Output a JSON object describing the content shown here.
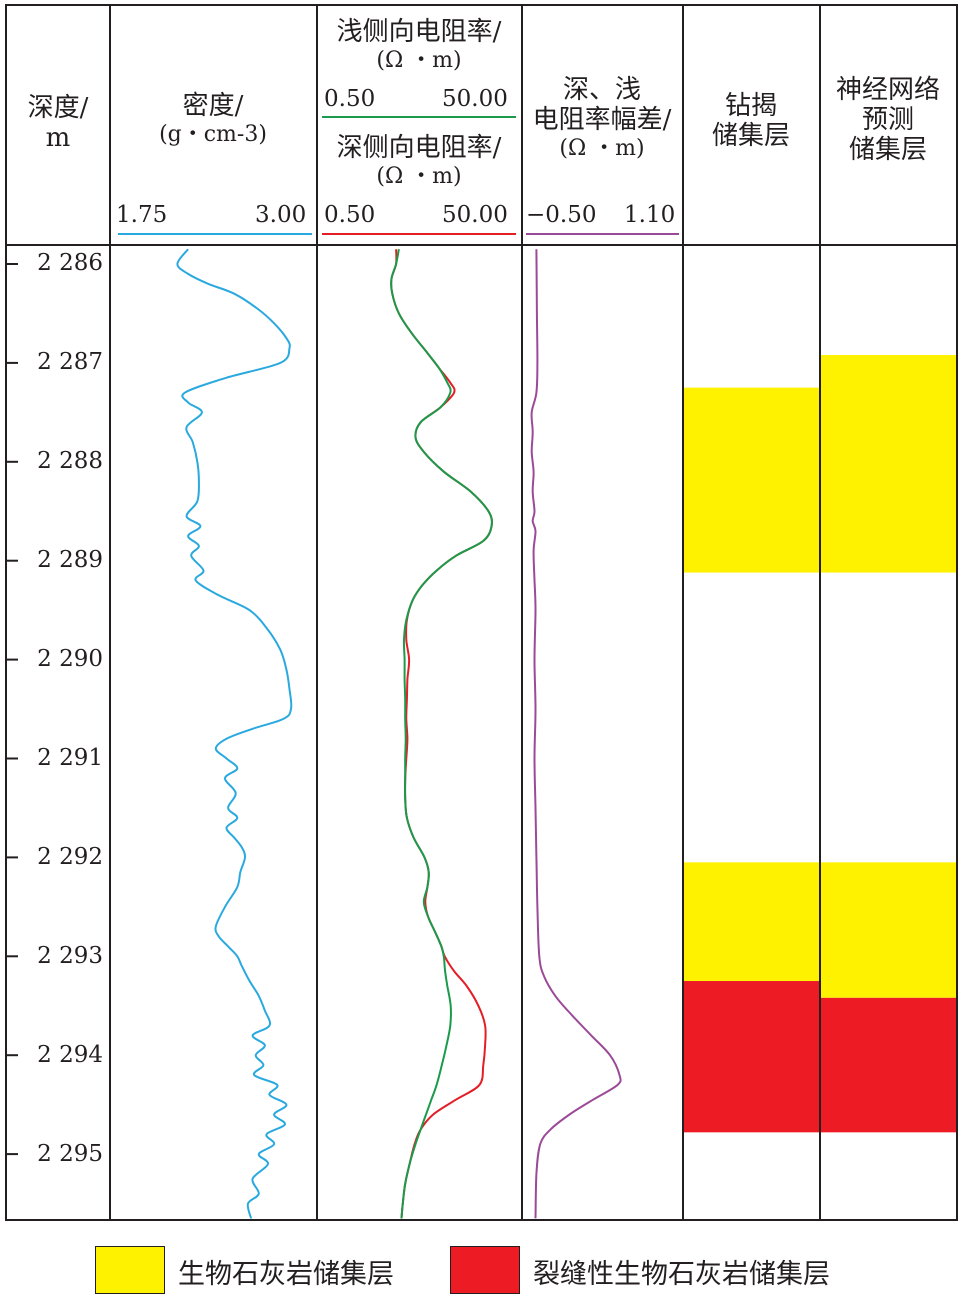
{
  "headers": {
    "depth": [
      "深度/",
      "m"
    ],
    "density": [
      "密度/",
      "(g・cm-3)"
    ],
    "shallow": [
      "浅侧向电阻率/",
      "(Ω ・m)"
    ],
    "deep": [
      "深侧向电阻率/",
      "(Ω ・m)"
    ],
    "diff": [
      "深、浅",
      "电阻率幅差/",
      "(Ω ・m)"
    ],
    "drilled": [
      "钻揭",
      "储集层"
    ],
    "nn": [
      "神经网络",
      "预测",
      "储集层"
    ]
  },
  "scales": {
    "density": {
      "min": "1.75",
      "max": "3.00",
      "color": "#2aa9df"
    },
    "shallow": {
      "min": "0.50",
      "max": "50.00",
      "color": "#1a9a4a"
    },
    "deep": {
      "min": "0.50",
      "max": "50.00",
      "color": "#e31e25"
    },
    "diff": {
      "min": "−0.50",
      "max": "1.10",
      "color": "#9b4a98"
    }
  },
  "legend": [
    {
      "label": "生物石灰岩储集层",
      "color": "#fff200"
    },
    {
      "label": "裂缝性生物石灰岩储集层",
      "color": "#ed1c24"
    }
  ],
  "chart_data": {
    "type": "line",
    "ylabel": "深度/m",
    "ylim": [
      2285.85,
      2295.65
    ],
    "depth_ticks": [
      "2 286",
      "2 287",
      "2 288",
      "2 289",
      "2 290",
      "2 291",
      "2 292",
      "2 293",
      "2 294",
      "2 295"
    ],
    "depth_tick_values": [
      2286,
      2287,
      2288,
      2289,
      2290,
      2291,
      2292,
      2293,
      2294,
      2295
    ],
    "series": [
      {
        "track": "density",
        "xlim": [
          1.75,
          3.0
        ],
        "depth": [
          2285.85,
          2286.0,
          2286.1,
          2286.2,
          2286.3,
          2286.45,
          2286.6,
          2286.75,
          2286.85,
          2287.0,
          2287.15,
          2287.3,
          2287.4,
          2287.5,
          2287.65,
          2287.8,
          2288.0,
          2288.2,
          2288.4,
          2288.55,
          2288.65,
          2288.75,
          2288.85,
          2288.95,
          2289.1,
          2289.2,
          2289.35,
          2289.5,
          2289.7,
          2289.9,
          2290.1,
          2290.3,
          2290.5,
          2290.6,
          2290.7,
          2290.8,
          2290.9,
          2291.0,
          2291.1,
          2291.2,
          2291.35,
          2291.5,
          2291.6,
          2291.7,
          2291.8,
          2291.9,
          2292.0,
          2292.15,
          2292.3,
          2292.5,
          2292.7,
          2292.8,
          2292.9,
          2293.0,
          2293.1,
          2293.25,
          2293.4,
          2293.55,
          2293.7,
          2293.8,
          2293.9,
          2294.0,
          2294.1,
          2294.2,
          2294.3,
          2294.4,
          2294.5,
          2294.6,
          2294.7,
          2294.8,
          2294.9,
          2295.0,
          2295.1,
          2295.25,
          2295.4,
          2295.5,
          2295.65
        ],
        "values": [
          2.2,
          2.13,
          2.2,
          2.33,
          2.5,
          2.65,
          2.76,
          2.84,
          2.86,
          2.8,
          2.45,
          2.18,
          2.2,
          2.29,
          2.19,
          2.23,
          2.26,
          2.27,
          2.26,
          2.19,
          2.28,
          2.2,
          2.27,
          2.22,
          2.3,
          2.25,
          2.4,
          2.6,
          2.72,
          2.8,
          2.84,
          2.86,
          2.87,
          2.82,
          2.62,
          2.45,
          2.38,
          2.45,
          2.52,
          2.44,
          2.51,
          2.46,
          2.52,
          2.45,
          2.5,
          2.55,
          2.57,
          2.54,
          2.52,
          2.44,
          2.38,
          2.4,
          2.46,
          2.52,
          2.55,
          2.6,
          2.66,
          2.7,
          2.73,
          2.62,
          2.7,
          2.64,
          2.69,
          2.63,
          2.78,
          2.73,
          2.84,
          2.76,
          2.83,
          2.71,
          2.76,
          2.66,
          2.72,
          2.62,
          2.66,
          2.59,
          2.61
        ]
      },
      {
        "track": "deep",
        "xlim": [
          0.5,
          50.0
        ],
        "scale": "log",
        "depth": [
          2285.85,
          2286.0,
          2286.15,
          2286.3,
          2286.5,
          2286.7,
          2286.9,
          2287.05,
          2287.2,
          2287.3,
          2287.45,
          2287.6,
          2287.75,
          2287.9,
          2288.1,
          2288.3,
          2288.5,
          2288.65,
          2288.8,
          2288.95,
          2289.1,
          2289.25,
          2289.4,
          2289.6,
          2289.8,
          2290.0,
          2290.2,
          2290.4,
          2290.6,
          2290.8,
          2291.0,
          2291.2,
          2291.4,
          2291.6,
          2291.8,
          2292.0,
          2292.15,
          2292.3,
          2292.45,
          2292.6,
          2292.75,
          2292.9,
          2293.0,
          2293.15,
          2293.3,
          2293.5,
          2293.7,
          2293.9,
          2294.1,
          2294.3,
          2294.45,
          2294.6,
          2294.75,
          2294.9,
          2295.1,
          2295.3,
          2295.5,
          2295.65
        ],
        "values": [
          2.9,
          2.9,
          2.6,
          2.65,
          3.1,
          4.2,
          6.1,
          8.0,
          10.5,
          11.5,
          8.3,
          5.2,
          4.6,
          5.6,
          9.0,
          17.0,
          26.0,
          28.0,
          23.0,
          12.0,
          7.6,
          5.4,
          4.3,
          3.75,
          3.7,
          3.95,
          3.8,
          3.75,
          3.7,
          3.8,
          3.7,
          3.6,
          3.6,
          3.75,
          4.4,
          5.7,
          6.3,
          6.1,
          5.8,
          6.2,
          7.3,
          8.5,
          9.2,
          11.5,
          15.5,
          20.5,
          24.0,
          24.0,
          23.0,
          21.0,
          12.0,
          7.0,
          5.2,
          4.5,
          4.0,
          3.6,
          3.4,
          3.3
        ]
      },
      {
        "track": "shallow",
        "xlim": [
          0.5,
          50.0
        ],
        "scale": "log",
        "depth": [
          2285.85,
          2286.0,
          2286.15,
          2286.3,
          2286.5,
          2286.7,
          2286.9,
          2287.05,
          2287.2,
          2287.3,
          2287.45,
          2287.6,
          2287.75,
          2287.9,
          2288.1,
          2288.3,
          2288.5,
          2288.65,
          2288.8,
          2288.95,
          2289.1,
          2289.25,
          2289.4,
          2289.6,
          2289.8,
          2290.0,
          2290.2,
          2290.4,
          2290.6,
          2290.8,
          2291.0,
          2291.2,
          2291.4,
          2291.6,
          2291.8,
          2292.0,
          2292.15,
          2292.3,
          2292.45,
          2292.6,
          2292.75,
          2292.9,
          2293.0,
          2293.15,
          2293.3,
          2293.5,
          2293.7,
          2293.9,
          2294.1,
          2294.3,
          2294.45,
          2294.6,
          2294.75,
          2294.9,
          2295.1,
          2295.3,
          2295.5,
          2295.65
        ],
        "values": [
          3.1,
          2.9,
          2.6,
          2.65,
          3.1,
          4.2,
          6.1,
          8.0,
          9.8,
          10.5,
          8.3,
          5.2,
          4.6,
          5.6,
          9.0,
          17.0,
          26.0,
          28.0,
          23.0,
          12.0,
          7.6,
          5.4,
          4.3,
          3.7,
          3.5,
          3.55,
          3.55,
          3.6,
          3.6,
          3.65,
          3.6,
          3.6,
          3.6,
          3.75,
          4.4,
          5.7,
          6.3,
          6.1,
          5.6,
          6.2,
          7.3,
          8.5,
          9.0,
          9.3,
          9.8,
          10.6,
          10.5,
          9.6,
          8.6,
          7.6,
          6.7,
          5.9,
          5.2,
          4.6,
          4.0,
          3.6,
          3.4,
          3.3
        ]
      },
      {
        "track": "diff",
        "xlim": [
          -0.5,
          1.1
        ],
        "depth": [
          2285.85,
          2286.5,
          2287.0,
          2287.3,
          2287.5,
          2287.7,
          2287.9,
          2288.1,
          2288.3,
          2288.5,
          2288.6,
          2288.7,
          2288.9,
          2289.2,
          2289.5,
          2290.0,
          2290.5,
          2291.0,
          2291.5,
          2292.0,
          2292.5,
          2293.0,
          2293.2,
          2293.4,
          2293.6,
          2293.8,
          2294.0,
          2294.2,
          2294.3,
          2294.45,
          2294.6,
          2294.75,
          2294.9,
          2295.2,
          2295.65
        ],
        "values": [
          -0.4,
          -0.395,
          -0.39,
          -0.4,
          -0.45,
          -0.44,
          -0.45,
          -0.43,
          -0.44,
          -0.42,
          -0.44,
          -0.41,
          -0.43,
          -0.42,
          -0.41,
          -0.42,
          -0.41,
          -0.42,
          -0.41,
          -0.4,
          -0.39,
          -0.37,
          -0.32,
          -0.2,
          -0.02,
          0.18,
          0.38,
          0.48,
          0.46,
          0.2,
          -0.05,
          -0.25,
          -0.36,
          -0.4,
          -0.41
        ]
      }
    ],
    "reservoirs": {
      "drilled": [
        {
          "top": 2287.25,
          "bottom": 2289.12,
          "type": "生物石灰岩储集层"
        },
        {
          "top": 2292.05,
          "bottom": 2293.25,
          "type": "生物石灰岩储集层"
        },
        {
          "top": 2293.25,
          "bottom": 2294.78,
          "type": "裂缝性生物石灰岩储集层"
        }
      ],
      "predicted": [
        {
          "top": 2286.92,
          "bottom": 2289.12,
          "type": "生物石灰岩储集层"
        },
        {
          "top": 2292.05,
          "bottom": 2293.42,
          "type": "生物石灰岩储集层"
        },
        {
          "top": 2293.42,
          "bottom": 2294.78,
          "type": "裂缝性生物石灰岩储集层"
        }
      ]
    }
  }
}
